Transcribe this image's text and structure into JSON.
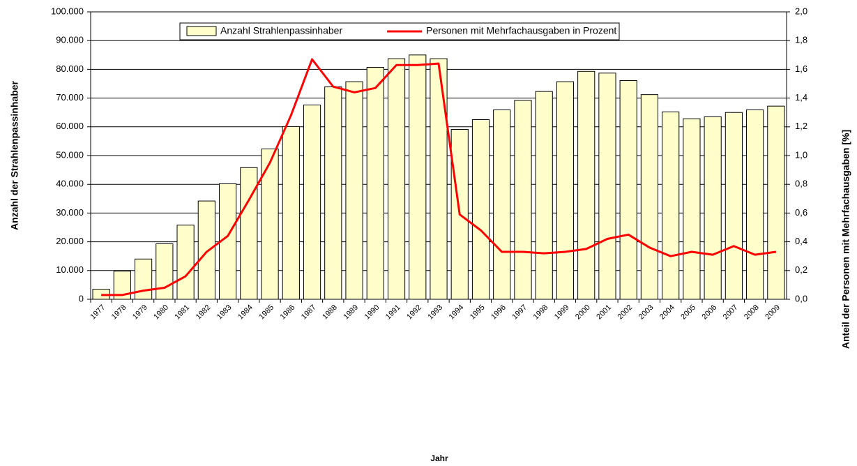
{
  "chart_data": {
    "type": "bar",
    "x_label": "Jahr",
    "y_label": "Anzahl der Strahlenpassinhaber",
    "y2_label": "Anteil der Personen mit Mehrfachausgaben [%]",
    "categories": [
      "1977",
      "1978",
      "1979",
      "1980",
      "1981",
      "1982",
      "1983",
      "1984",
      "1985",
      "1986",
      "1987",
      "1988",
      "1989",
      "1990",
      "1991",
      "1992",
      "1993",
      "1994",
      "1995",
      "1996",
      "1997",
      "1998",
      "1999",
      "2000",
      "2001",
      "2002",
      "2003",
      "2004",
      "2005",
      "2006",
      "2007",
      "2008",
      "2009"
    ],
    "series": [
      {
        "name": "Anzahl Strahlenpassinhaber",
        "type": "bar",
        "color": "#ffffcc",
        "values": [
          3500,
          9800,
          14000,
          19300,
          25800,
          34200,
          40200,
          45800,
          52300,
          60100,
          67600,
          73900,
          75700,
          80700,
          83700,
          85000,
          83700,
          59100,
          62500,
          65900,
          69200,
          72300,
          75700,
          79300,
          78700,
          76100,
          71200,
          65200,
          62800,
          63500,
          65000,
          65900,
          67200
        ]
      },
      {
        "name": "Personen mit Mehrfachausgaben in Prozent",
        "type": "line",
        "axis": "y2",
        "color": "#ff0000",
        "values": [
          0.03,
          0.03,
          0.06,
          0.08,
          0.16,
          0.33,
          0.44,
          0.69,
          0.95,
          1.28,
          1.67,
          1.48,
          1.44,
          1.47,
          1.63,
          1.63,
          1.64,
          0.59,
          0.48,
          0.33,
          0.33,
          0.32,
          0.33,
          0.35,
          0.42,
          0.45,
          0.36,
          0.3,
          0.33,
          0.31,
          0.37,
          0.31,
          0.33
        ]
      }
    ],
    "ylim": [
      0,
      100000
    ],
    "yticks": [
      0,
      {
        "value": 10000,
        "label": "10.000"
      },
      {
        "value": 20000,
        "label": "20.000"
      },
      {
        "value": 30000,
        "label": "30.000"
      },
      {
        "value": 40000,
        "label": "40.000"
      },
      {
        "value": 50000,
        "label": "50.000"
      },
      {
        "value": 60000,
        "label": "60.000"
      },
      {
        "value": 70000,
        "label": "70.000"
      },
      {
        "value": 80000,
        "label": "80.000"
      },
      {
        "value": 90000,
        "label": "90.000"
      },
      {
        "value": 100000,
        "label": "100.000"
      }
    ],
    "y2lim": [
      0,
      2
    ],
    "y2ticks": [
      {
        "value": 0,
        "label": "0,0"
      },
      {
        "value": 0.2,
        "label": "0,2"
      },
      {
        "value": 0.4,
        "label": "0,4"
      },
      {
        "value": 0.6,
        "label": "0,6"
      },
      {
        "value": 0.8,
        "label": "0,8"
      },
      {
        "value": 1,
        "label": "1,0"
      },
      {
        "value": 1.2,
        "label": "1,2"
      },
      {
        "value": 1.4,
        "label": "1,4"
      },
      {
        "value": 1.6,
        "label": "1,6"
      },
      {
        "value": 1.8,
        "label": "1,8"
      },
      {
        "value": 2,
        "label": "2,0"
      }
    ],
    "grid": true,
    "legend": "top"
  }
}
